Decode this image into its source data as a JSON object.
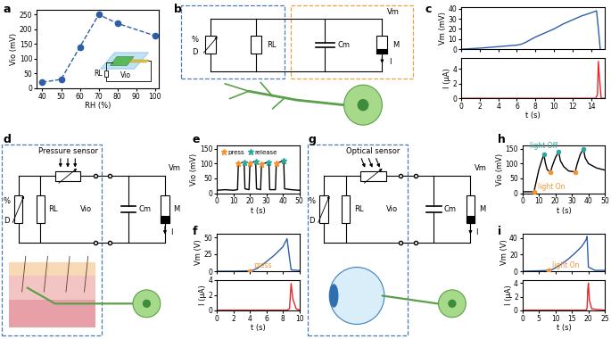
{
  "panel_labels": [
    "a",
    "b",
    "c",
    "d",
    "e",
    "f",
    "g",
    "h",
    "i"
  ],
  "chart_data": [
    {
      "type": "line",
      "x": [
        40,
        50,
        60,
        70,
        80,
        100
      ],
      "values": [
        20,
        30,
        140,
        250,
        220,
        178
      ],
      "color": "#2e5da8",
      "marker": "circle",
      "line_style": "dashed",
      "x_label": "RH (%)",
      "y_label": "Vio (mV)",
      "xlim": [
        37,
        102
      ],
      "xticks": [
        40,
        50,
        60,
        70,
        80,
        90,
        100
      ],
      "ylim": [
        0,
        265
      ],
      "yticks": [
        0,
        50,
        100,
        150,
        200,
        250
      ],
      "inset_labels": [
        "RL",
        "Vio"
      ]
    },
    {
      "type": "line",
      "x": [
        0,
        2,
        4,
        6,
        6.5,
        7,
        8,
        9,
        10,
        11,
        12,
        13,
        14,
        14.6,
        14.8,
        15
      ],
      "values": [
        0,
        1,
        2.5,
        4,
        5,
        7,
        12,
        16,
        20,
        25,
        29,
        33,
        36,
        38,
        20,
        0
      ],
      "color": "#2e5da8",
      "y_label": "Vm (mV)",
      "xlim": [
        0,
        15.5
      ],
      "xticks": [
        0,
        2,
        4,
        6,
        8,
        10,
        12,
        14
      ],
      "ylim": [
        0,
        42
      ],
      "yticks": [
        0,
        10,
        20,
        30,
        40
      ],
      "tick_labels": "y"
    },
    {
      "type": "line",
      "x": [
        0,
        14.5,
        14.7,
        14.8,
        14.9,
        15.1,
        15.5
      ],
      "values": [
        0,
        0,
        0.5,
        5,
        3,
        0,
        0
      ],
      "color": "#e8262a",
      "y_label": "I (μA)",
      "x_label": "t (s)",
      "xlim": [
        0,
        15.5
      ],
      "xticks": [
        0,
        2,
        4,
        6,
        8,
        10,
        12,
        14
      ],
      "ylim": [
        0,
        5.5
      ],
      "yticks": [
        0,
        2,
        4
      ]
    },
    {
      "type": "line",
      "x": [
        0,
        5,
        10,
        12.5,
        13,
        16.5,
        17,
        19.5,
        20,
        23.5,
        24,
        26.5,
        27,
        31.5,
        32,
        35.5,
        36,
        40.5,
        41,
        45,
        50
      ],
      "values": [
        10,
        12,
        10,
        12,
        100,
        105,
        15,
        12,
        100,
        108,
        15,
        12,
        98,
        105,
        12,
        12,
        100,
        110,
        15,
        12,
        10
      ],
      "color": "#000000",
      "y_label": "Vio (mV)",
      "x_label": "t (s)",
      "xlim": [
        0,
        50
      ],
      "xticks": [
        0,
        10,
        20,
        30,
        40,
        50
      ],
      "ylim": [
        0,
        160
      ],
      "yticks": [
        0,
        50,
        100,
        150
      ],
      "legend": "upper left",
      "series": [
        {
          "name": "press",
          "type": "scatter",
          "marker": "star",
          "color": "#f5922f",
          "x": [
            13,
            20,
            27,
            36
          ],
          "values": [
            100,
            100,
            98,
            100
          ]
        },
        {
          "name": "release",
          "type": "scatter",
          "marker": "star",
          "color": "#2aa8a0",
          "x": [
            16.5,
            23.5,
            31.5,
            40.5
          ],
          "values": [
            105,
            108,
            105,
            110
          ]
        }
      ]
    },
    {
      "type": "line",
      "x": [
        0,
        2,
        4,
        4.5,
        5,
        6,
        7,
        8,
        8.5,
        8.8,
        9,
        10
      ],
      "values": [
        0,
        0,
        0.5,
        2,
        5,
        14,
        24,
        36,
        48,
        20,
        2,
        1
      ],
      "color": "#2e5da8",
      "y_label": "Vm (V)",
      "xlim": [
        0,
        10
      ],
      "xticks": [
        0,
        2,
        4,
        6,
        8,
        10
      ],
      "ylim": [
        0,
        55
      ],
      "yticks": [
        0,
        25,
        50
      ],
      "tick_labels": "y",
      "series": [
        {
          "name": "press",
          "type": "scatter",
          "marker": "circle",
          "color": "#f5922f",
          "x": [
            4
          ],
          "values": [
            0.5
          ]
        }
      ]
    },
    {
      "type": "line",
      "x": [
        0,
        8.5,
        8.8,
        9,
        9.2,
        9.6,
        10
      ],
      "values": [
        0,
        0,
        0.2,
        3.5,
        1.5,
        0.2,
        0
      ],
      "color": "#e8262a",
      "y_label": "I (μA)",
      "x_label": "t (s)",
      "xlim": [
        0,
        10
      ],
      "xticks": [
        0,
        2,
        4,
        6,
        8,
        10
      ],
      "ylim": [
        0,
        4
      ],
      "yticks": [
        0,
        2,
        4
      ]
    },
    {
      "type": "line",
      "x": [
        0,
        7,
        8,
        10,
        12,
        13,
        14,
        15,
        17,
        18,
        20,
        22,
        23,
        25,
        28,
        32,
        33,
        35,
        37,
        38,
        40,
        45,
        50
      ],
      "values": [
        5,
        5,
        30,
        80,
        115,
        130,
        100,
        80,
        70,
        90,
        120,
        140,
        110,
        90,
        75,
        72,
        95,
        130,
        150,
        120,
        100,
        85,
        78
      ],
      "color": "#000000",
      "y_label": "Vio (mV)",
      "x_label": "t (s)",
      "xlim": [
        0,
        50
      ],
      "xticks": [
        0,
        10,
        20,
        30,
        40,
        50
      ],
      "ylim": [
        0,
        160
      ],
      "yticks": [
        0,
        50,
        100,
        150
      ],
      "series": [
        {
          "name": "light On",
          "type": "scatter",
          "marker": "circle",
          "color": "#f5922f",
          "x": [
            7,
            17,
            32
          ],
          "values": [
            5,
            70,
            72
          ]
        },
        {
          "name": "light Off",
          "type": "scatter",
          "marker": "circle",
          "color": "#2aa8a0",
          "x": [
            13,
            22,
            37
          ],
          "values": [
            130,
            140,
            150
          ]
        }
      ]
    },
    {
      "type": "line",
      "x": [
        0,
        5,
        8,
        9,
        10,
        12,
        14,
        16,
        18,
        19.3,
        19.6,
        20,
        22,
        25
      ],
      "values": [
        0,
        0.5,
        1,
        2,
        4,
        9,
        15,
        22,
        30,
        38,
        42,
        5,
        1,
        1
      ],
      "color": "#2e5da8",
      "y_label": "Vm (V)",
      "xlim": [
        0,
        25
      ],
      "xticks": [
        0,
        5,
        10,
        15,
        20,
        25
      ],
      "ylim": [
        0,
        45
      ],
      "yticks": [
        0,
        20,
        40
      ],
      "tick_labels": "y",
      "series": [
        {
          "name": "light On",
          "type": "scatter",
          "marker": "circle",
          "color": "#f5922f",
          "x": [
            8
          ],
          "values": [
            1
          ]
        }
      ]
    },
    {
      "type": "line",
      "x": [
        0,
        19.3,
        19.6,
        19.8,
        20,
        20.3,
        21,
        25
      ],
      "values": [
        0,
        0,
        0.3,
        3,
        4,
        1.5,
        0.2,
        0
      ],
      "color": "#e8262a",
      "y_label": "I (μA)",
      "x_label": "t (s)",
      "xlim": [
        0,
        25
      ],
      "xticks": [
        0,
        5,
        10,
        15,
        20,
        25
      ],
      "ylim": [
        0,
        4.5
      ],
      "yticks": [
        0,
        2,
        4
      ]
    }
  ],
  "diagrams": {
    "b": {
      "sensor_symbols": [
        "%",
        "D"
      ],
      "load": "RL",
      "capacitor": "Cm",
      "memristor": "M",
      "voltage": "Vm",
      "current": "I"
    },
    "d": {
      "sensor": "Pressure sensor",
      "sensor_symbols": [
        "%",
        "D"
      ],
      "load": "RL",
      "output": "Vio",
      "capacitor": "Cm",
      "memristor": "M",
      "voltage": "Vm",
      "current": "I"
    },
    "g": {
      "sensor": "Optical sensor",
      "sensor_symbols": [
        "%",
        "D"
      ],
      "load": "RL",
      "output": "Vio",
      "capacitor": "Cm",
      "memristor": "M",
      "voltage": "Vm",
      "current": "I"
    }
  }
}
